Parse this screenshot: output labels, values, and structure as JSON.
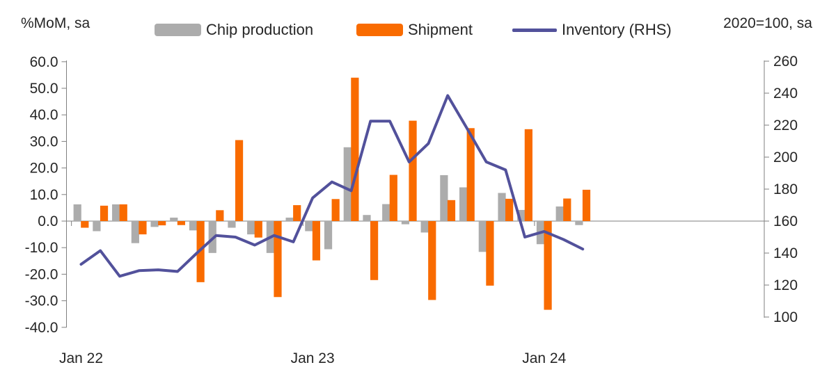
{
  "titles": {
    "left": "%MoM, sa",
    "right": "2020=100, sa"
  },
  "legend": {
    "items": [
      {
        "label": "Chip production",
        "color": "#ACACAC",
        "type": "bar"
      },
      {
        "label": "Shipment",
        "color": "#F96B00",
        "type": "bar"
      },
      {
        "label": "Inventory (RHS)",
        "color": "#52519B",
        "type": "line"
      }
    ]
  },
  "chart_data": {
    "type": "combo_bar_line",
    "title": "",
    "grid": "none",
    "legend_position": "top",
    "months": [
      "Jan 22",
      "Feb 22",
      "Mar 22",
      "Apr 22",
      "May 22",
      "Jun 22",
      "Jul 22",
      "Aug 22",
      "Sep 22",
      "Oct 22",
      "Nov 22",
      "Dec 22",
      "Jan 23",
      "Feb 23",
      "Mar 23",
      "Apr 23",
      "May 23",
      "Jun 23",
      "Jul 23",
      "Aug 23",
      "Sep 23",
      "Oct 23",
      "Nov 23",
      "Dec 23",
      "Jan 24",
      "Feb 24",
      "Mar 24"
    ],
    "series": [
      {
        "name": "Chip production",
        "type": "bar",
        "axis": "left",
        "color": "#ACACAC",
        "values": [
          6.3,
          -3.8,
          6.3,
          -8.3,
          -2.2,
          1.3,
          -3.5,
          -12.0,
          -2.5,
          -5.0,
          -12.0,
          1.3,
          -3.8,
          -10.6,
          27.8,
          2.3,
          6.4,
          -1.2,
          -4.3,
          17.3,
          12.7,
          -11.6,
          10.6,
          4.2,
          -8.7,
          5.5,
          -1.5
        ]
      },
      {
        "name": "Shipment",
        "type": "bar",
        "axis": "left",
        "color": "#F96B00",
        "values": [
          -2.5,
          5.8,
          6.3,
          -5.0,
          -1.6,
          -1.5,
          -23.0,
          4.1,
          30.5,
          -6.2,
          -28.6,
          6.0,
          -14.8,
          8.3,
          54.0,
          -22.2,
          17.4,
          37.8,
          -29.7,
          7.9,
          35.0,
          -24.3,
          8.4,
          34.6,
          -33.4,
          8.5,
          11.8
        ]
      },
      {
        "name": "Inventory (RHS)",
        "type": "line",
        "axis": "right",
        "color": "#52519B",
        "values": [
          133,
          141.5,
          125.5,
          129,
          129.5,
          128.5,
          140,
          151,
          150,
          145,
          151,
          147,
          174.5,
          184.5,
          179,
          222.5,
          222.5,
          197,
          208.5,
          238.5,
          218,
          197,
          192,
          150,
          153.5,
          148.5,
          142.5
        ]
      }
    ],
    "left_axis": {
      "title": "%MoM, sa",
      "min": -40,
      "max": 60,
      "step": 10,
      "tick_values": [
        60,
        50,
        40,
        30,
        20,
        10,
        0,
        -10,
        -20,
        -30,
        -40
      ],
      "tick_labels": [
        "60.0",
        "50.0",
        "40.0",
        "30.0",
        "20.0",
        "10.0",
        "0.0",
        "-10.0",
        "-20.0",
        "-30.0",
        "-40.0"
      ]
    },
    "right_axis": {
      "title": "2020=100, sa",
      "min": 100,
      "max": 260,
      "step": 20,
      "tick_values": [
        260,
        240,
        220,
        200,
        180,
        160,
        140,
        120,
        100
      ],
      "tick_labels": [
        "260",
        "240",
        "220",
        "200",
        "180",
        "160",
        "140",
        "120",
        "100"
      ]
    },
    "x_axis": {
      "visible_labels": [
        {
          "label": "Jan 22",
          "month_index": 0
        },
        {
          "label": "Jan 23",
          "month_index": 12
        },
        {
          "label": "Jan 24",
          "month_index": 24
        }
      ],
      "tick_month_boundaries": [
        0,
        12,
        24
      ]
    }
  }
}
